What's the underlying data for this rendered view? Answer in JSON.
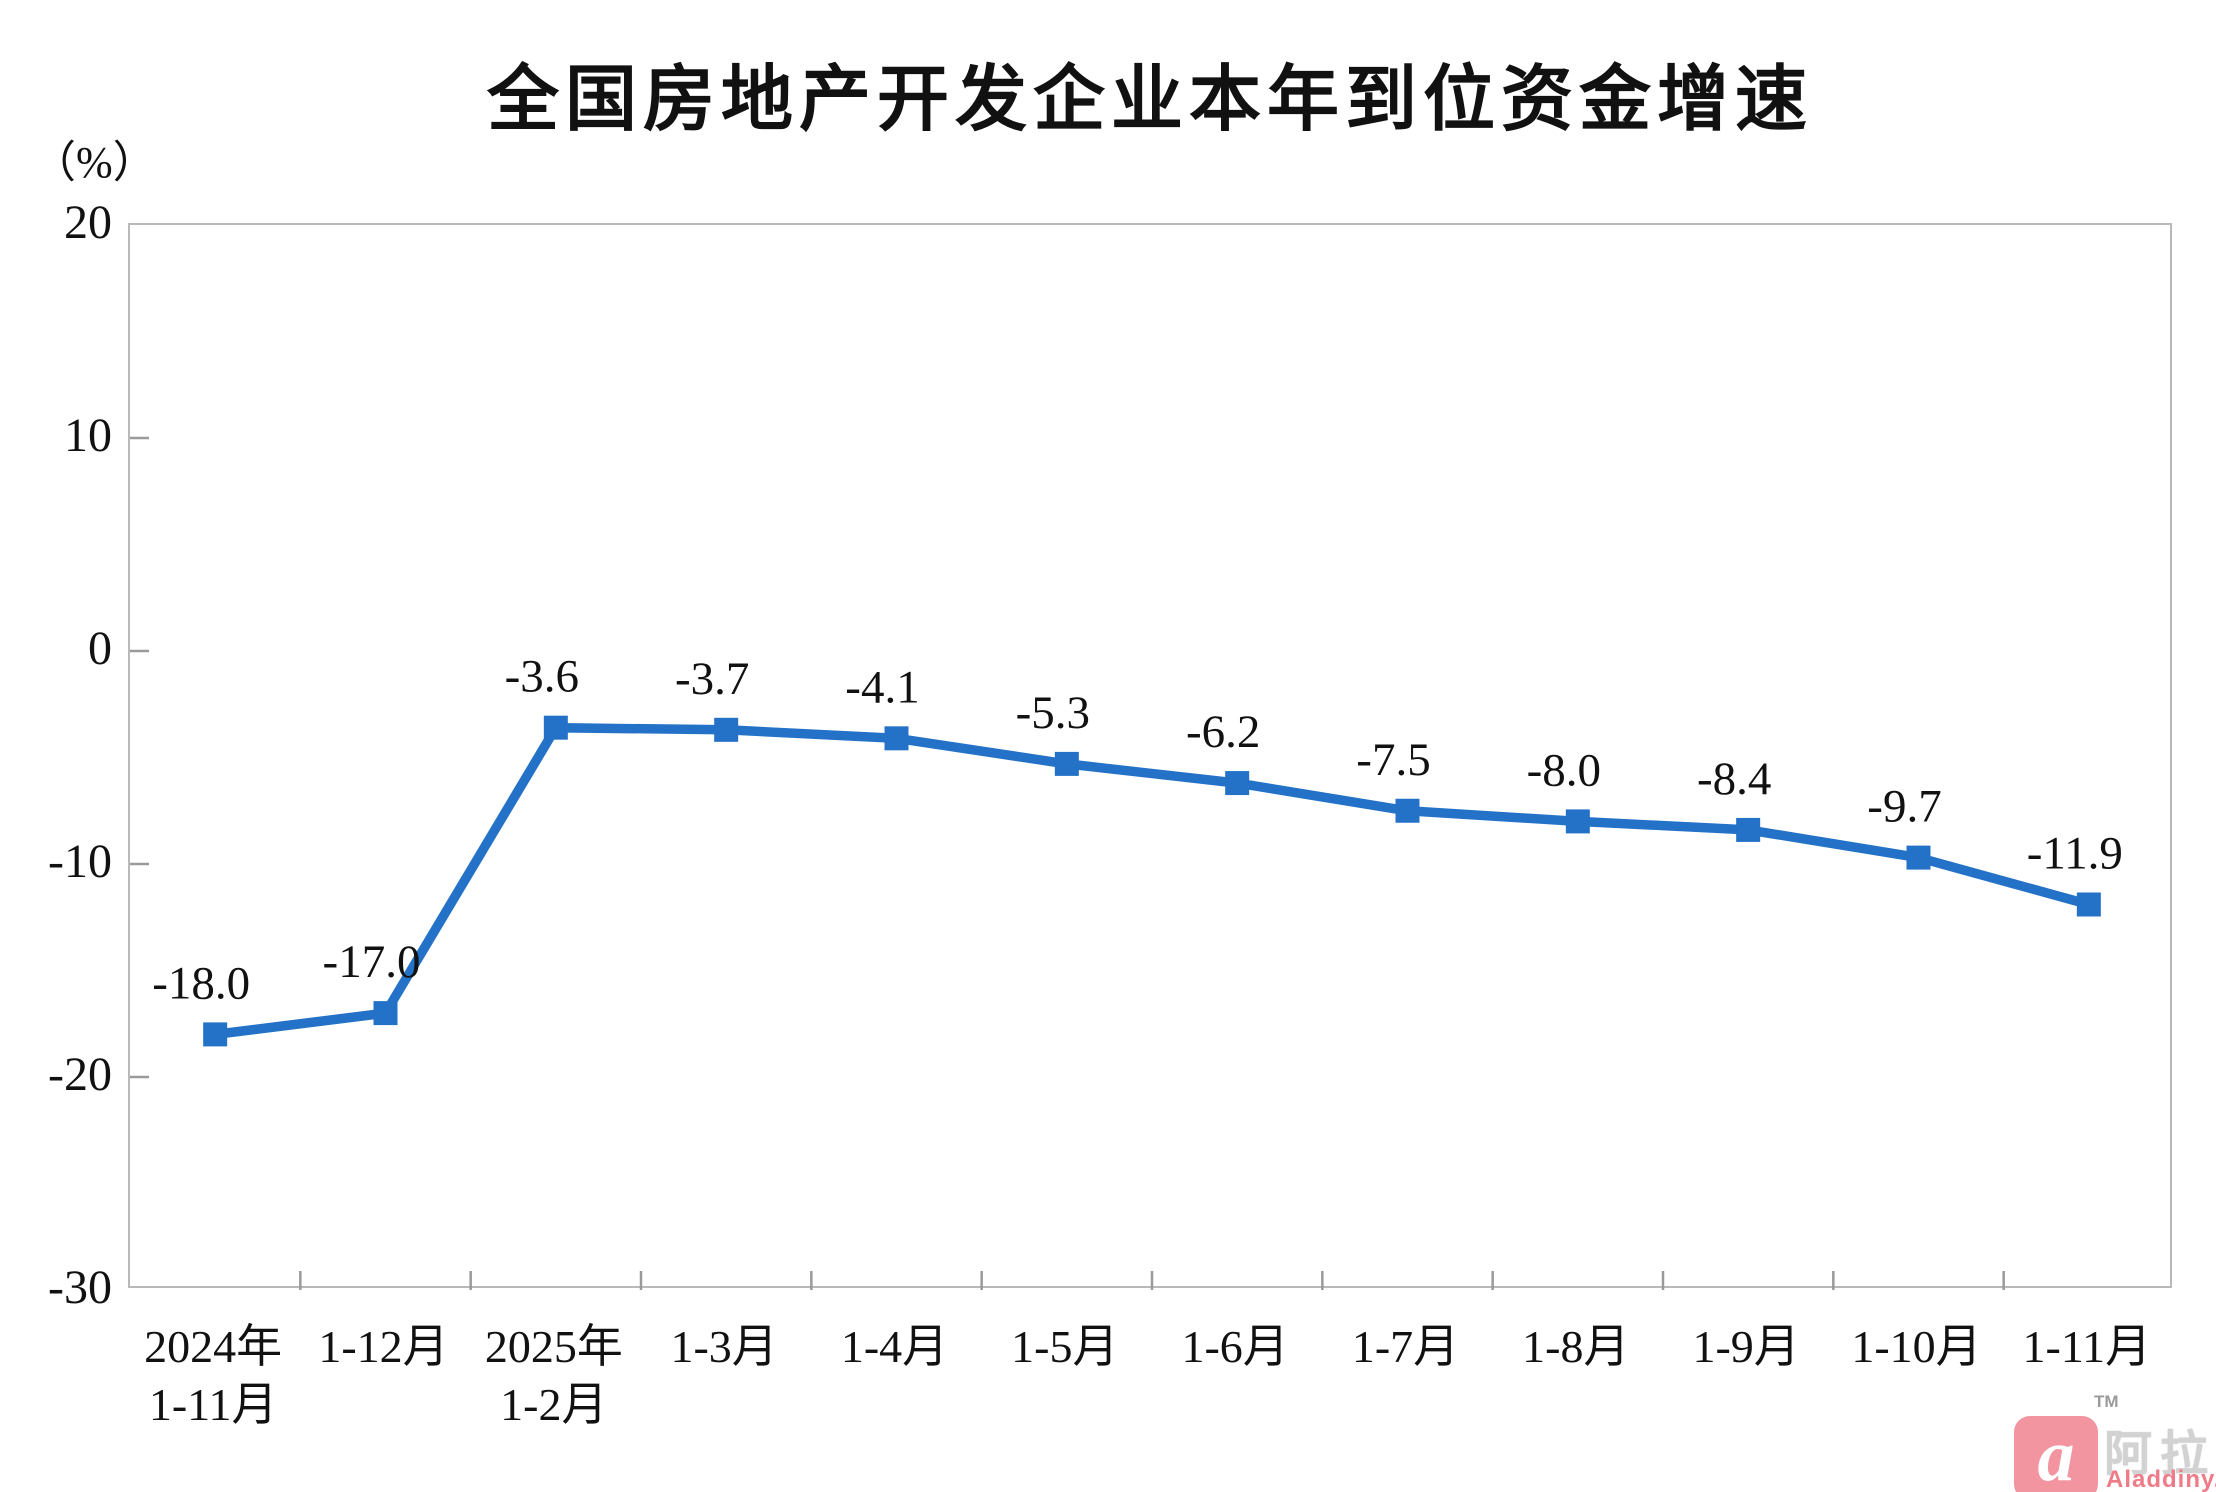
{
  "chart_data": {
    "type": "line",
    "title": "全国房地产开发企业本年到位资金增速",
    "ylabel": "（%）",
    "xlabel": "",
    "categories": [
      "2024年\n1-11月",
      "1-12月",
      "2025年\n1-2月",
      "1-3月",
      "1-4月",
      "1-5月",
      "1-6月",
      "1-7月",
      "1-8月",
      "1-9月",
      "1-10月",
      "1-11月"
    ],
    "values": [
      -18.0,
      -17.0,
      -3.6,
      -3.7,
      -4.1,
      -5.3,
      -6.2,
      -7.5,
      -8.0,
      -8.4,
      -9.7,
      -11.9
    ],
    "ylim": [
      -30,
      20
    ],
    "yticks": [
      20,
      10,
      0,
      -10,
      -20,
      -30
    ],
    "grid": false,
    "legend": "none",
    "line_color": "#2472c8",
    "marker": "square",
    "label_color": "#111111",
    "axis_color": "#b9b9b9",
    "tick_color": "#9a9a9a"
  },
  "watermark": {
    "logo_letter": "a",
    "tm": "TM",
    "name": "阿拉丁",
    "domain": "Aladdiny.com",
    "logo_color": "#f295a1",
    "domain_color": "#ef7b88"
  }
}
